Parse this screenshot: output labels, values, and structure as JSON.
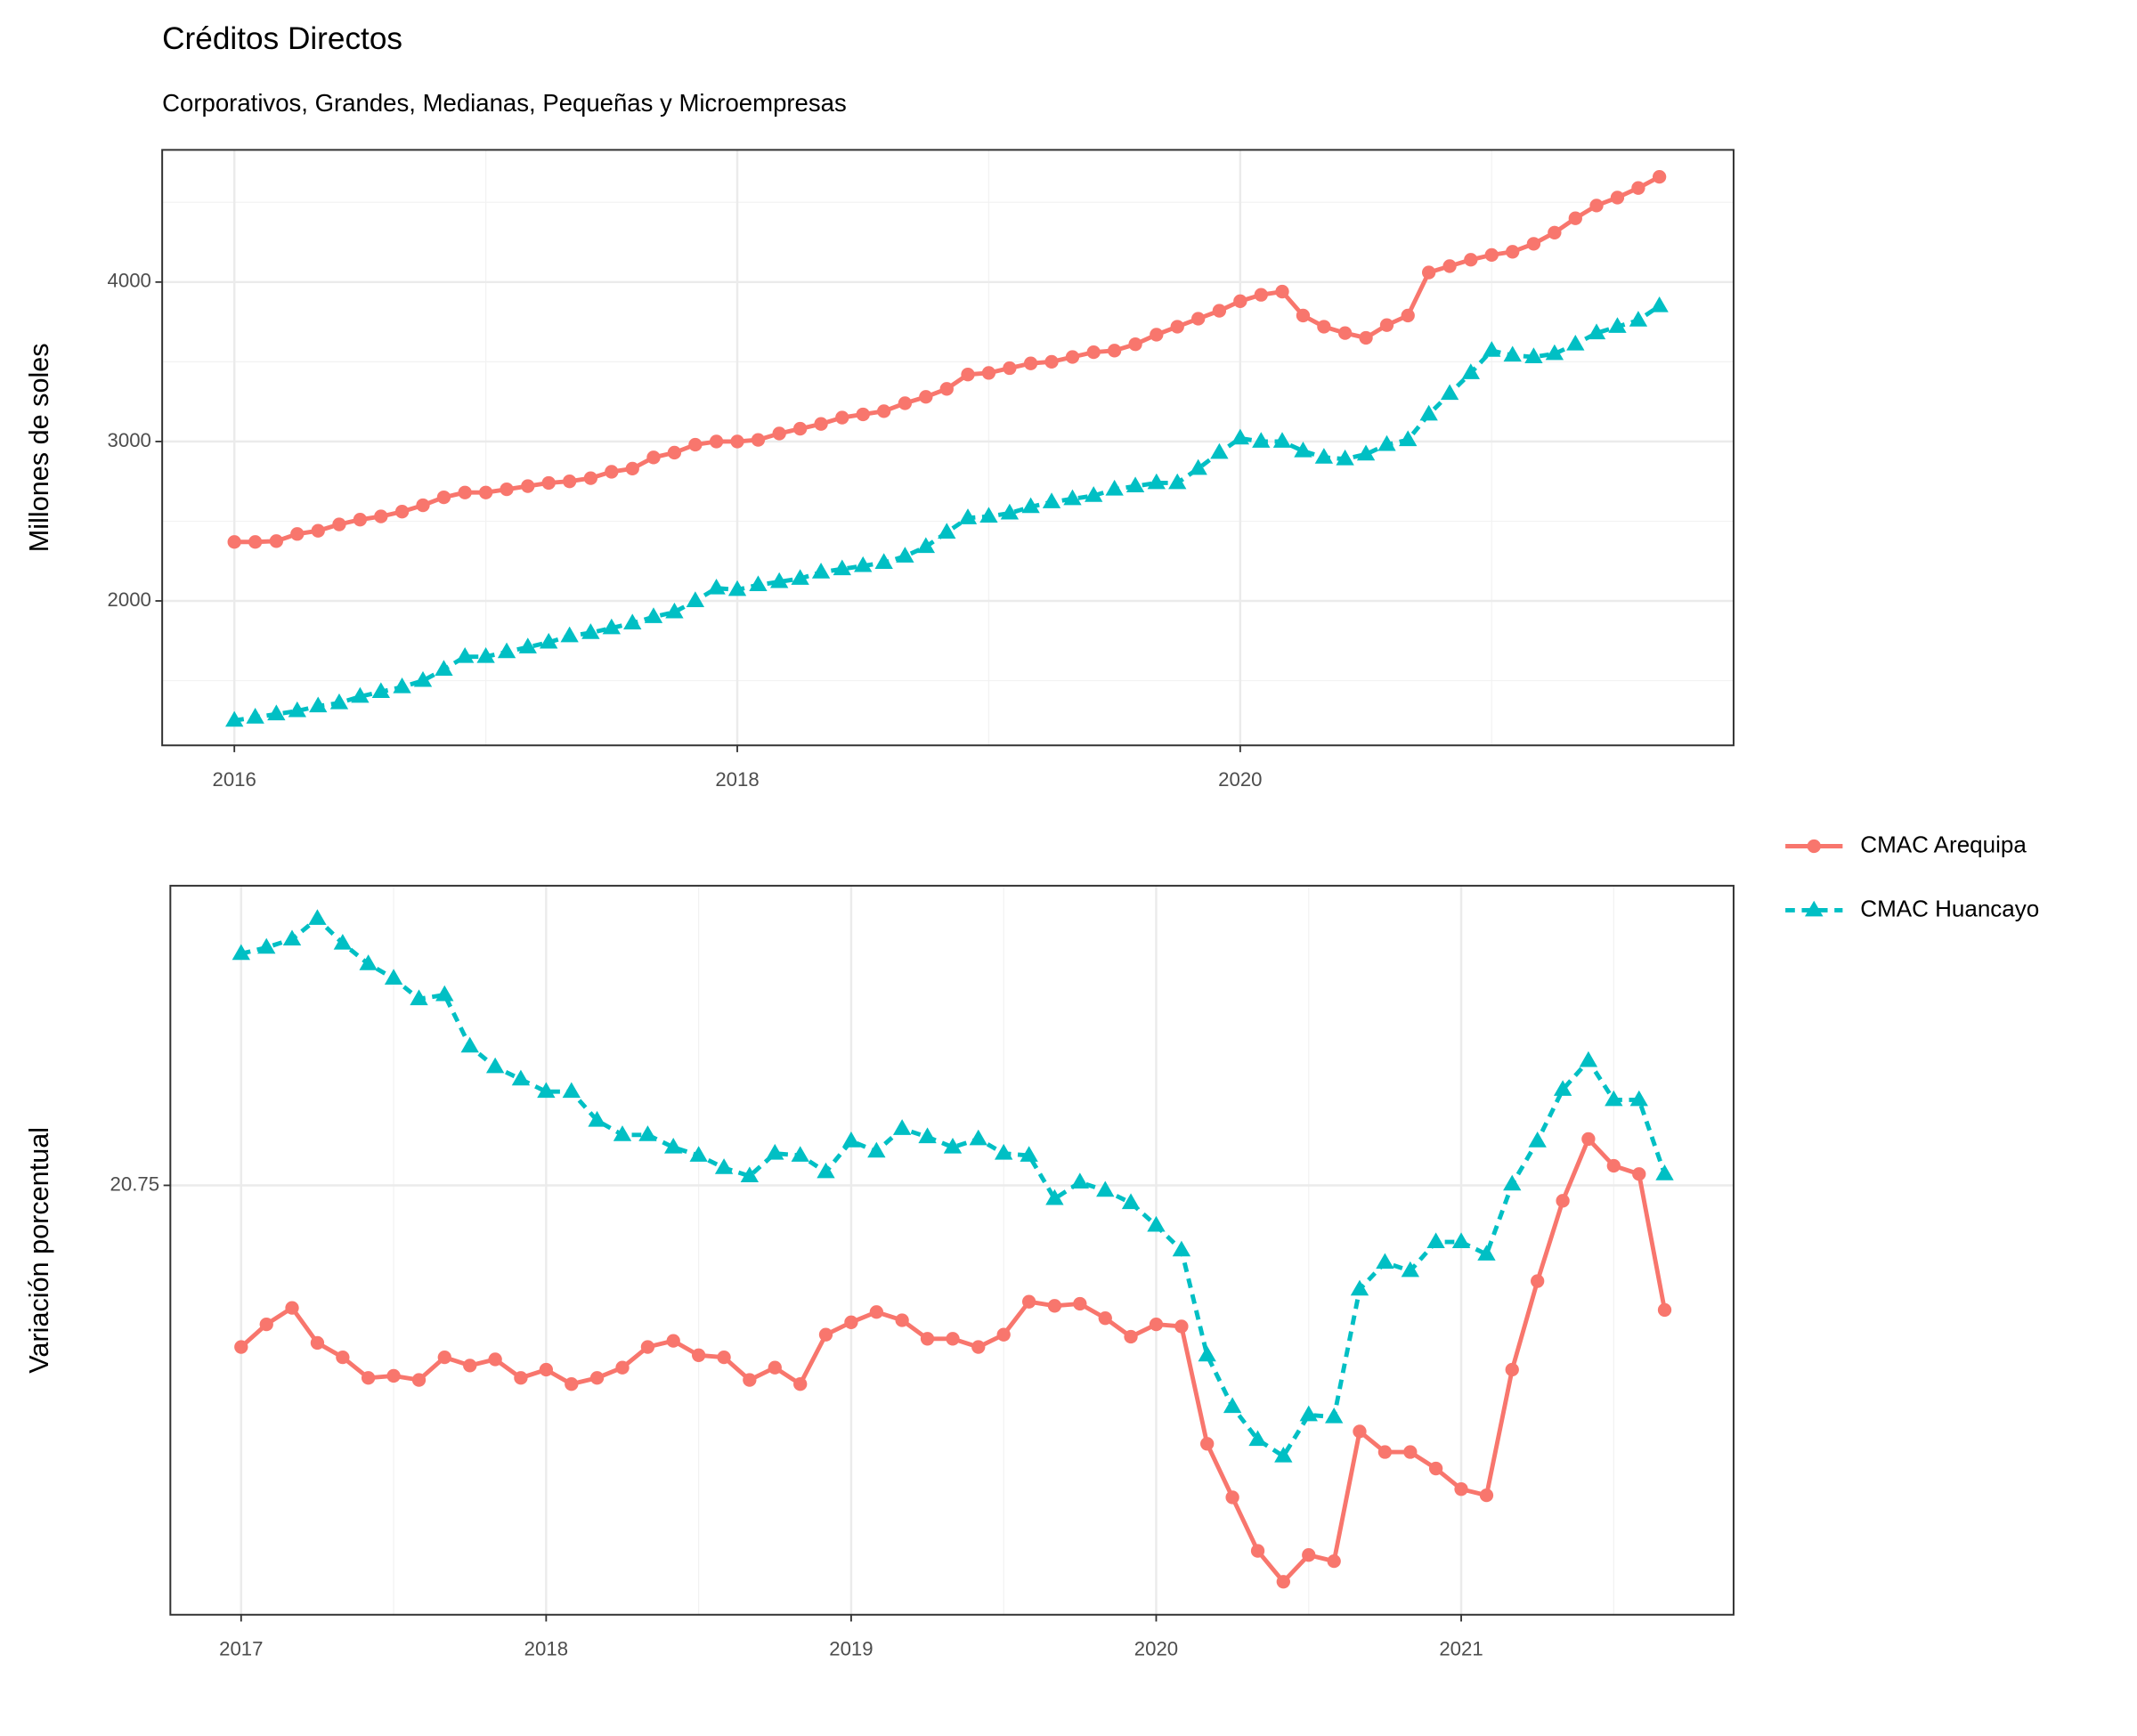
{
  "chart_data": [
    {
      "type": "line",
      "title": "Créditos Directos",
      "subtitle": "Corporativos, Grandes, Medianas, Pequeñas y Microempresas",
      "y_label": "Millones de soles",
      "x": [
        2016.0,
        2016.083,
        2016.167,
        2016.25,
        2016.333,
        2016.417,
        2016.5,
        2016.583,
        2016.667,
        2016.75,
        2016.833,
        2016.917,
        2017.0,
        2017.083,
        2017.167,
        2017.25,
        2017.333,
        2017.417,
        2017.5,
        2017.583,
        2017.667,
        2017.75,
        2017.833,
        2017.917,
        2018.0,
        2018.083,
        2018.167,
        2018.25,
        2018.333,
        2018.417,
        2018.5,
        2018.583,
        2018.667,
        2018.75,
        2018.833,
        2018.917,
        2019.0,
        2019.083,
        2019.167,
        2019.25,
        2019.333,
        2019.417,
        2019.5,
        2019.583,
        2019.667,
        2019.75,
        2019.833,
        2019.917,
        2020.0,
        2020.083,
        2020.167,
        2020.25,
        2020.333,
        2020.417,
        2020.5,
        2020.583,
        2020.667,
        2020.75,
        2020.833,
        2020.917,
        2021.0,
        2021.083,
        2021.167,
        2021.25,
        2021.333,
        2021.417,
        2021.5,
        2021.583,
        2021.667
      ],
      "series": [
        {
          "name": "CMAC Arequipa",
          "color": "#F8766D",
          "marker": "circle",
          "linestyle": "solid",
          "values": [
            2370,
            2370,
            2375,
            2420,
            2440,
            2480,
            2510,
            2530,
            2560,
            2600,
            2650,
            2680,
            2680,
            2700,
            2720,
            2740,
            2750,
            2770,
            2810,
            2830,
            2900,
            2930,
            2980,
            3000,
            3000,
            3010,
            3050,
            3080,
            3110,
            3150,
            3170,
            3190,
            3240,
            3280,
            3330,
            3420,
            3430,
            3460,
            3490,
            3500,
            3530,
            3560,
            3570,
            3610,
            3670,
            3720,
            3770,
            3820,
            3880,
            3920,
            3940,
            3790,
            3720,
            3680,
            3650,
            3730,
            3790,
            4060,
            4100,
            4140,
            4170,
            4190,
            4240,
            4310,
            4400,
            4480,
            4530,
            4590,
            4660
          ]
        },
        {
          "name": "CMAC Huancayo",
          "color": "#00BFC4",
          "marker": "triangle",
          "linestyle": "dashed",
          "values": [
            1250,
            1270,
            1290,
            1310,
            1340,
            1360,
            1400,
            1430,
            1460,
            1500,
            1570,
            1650,
            1650,
            1680,
            1710,
            1740,
            1780,
            1800,
            1830,
            1860,
            1900,
            1930,
            2000,
            2080,
            2070,
            2100,
            2120,
            2140,
            2180,
            2200,
            2220,
            2240,
            2280,
            2340,
            2430,
            2520,
            2530,
            2550,
            2590,
            2620,
            2640,
            2660,
            2700,
            2720,
            2740,
            2740,
            2830,
            2930,
            3020,
            3000,
            3000,
            2940,
            2900,
            2890,
            2920,
            2980,
            3010,
            3170,
            3300,
            3430,
            3570,
            3540,
            3530,
            3550,
            3610,
            3680,
            3720,
            3760,
            3850
          ]
        }
      ],
      "xlim": [
        2015.713,
        2021.962
      ],
      "xticks": [
        2016,
        2018,
        2020
      ],
      "ylim": [
        1094,
        4829
      ],
      "yticks": [
        2000,
        3000,
        4000
      ],
      "grid": true
    },
    {
      "type": "line",
      "y_label": "Variación porcentual",
      "x": [
        2017.0,
        2017.083,
        2017.167,
        2017.25,
        2017.333,
        2017.417,
        2017.5,
        2017.583,
        2017.667,
        2017.75,
        2017.833,
        2017.917,
        2018.0,
        2018.083,
        2018.167,
        2018.25,
        2018.333,
        2018.417,
        2018.5,
        2018.583,
        2018.667,
        2018.75,
        2018.833,
        2018.917,
        2019.0,
        2019.083,
        2019.167,
        2019.25,
        2019.333,
        2019.417,
        2019.5,
        2019.583,
        2019.667,
        2019.75,
        2019.833,
        2019.917,
        2020.0,
        2020.083,
        2020.167,
        2020.25,
        2020.333,
        2020.417,
        2020.5,
        2020.583,
        2020.667,
        2020.75,
        2020.833,
        2020.917,
        2021.0,
        2021.083,
        2021.167,
        2021.25,
        2021.333,
        2021.417,
        2021.5,
        2021.583,
        2021.667
      ],
      "series": [
        {
          "name": "CMAC Arequipa",
          "color": "#F8766D",
          "marker": "circle",
          "linestyle": "solid",
          "values": [
            12.9,
            14.0,
            14.8,
            13.1,
            12.4,
            11.4,
            11.5,
            11.3,
            12.4,
            12.0,
            12.3,
            11.4,
            11.8,
            11.1,
            11.4,
            11.9,
            12.9,
            13.2,
            12.5,
            12.4,
            11.3,
            11.9,
            11.1,
            13.5,
            14.1,
            14.6,
            14.2,
            13.3,
            13.3,
            12.9,
            13.5,
            15.1,
            14.9,
            15.0,
            14.3,
            13.4,
            14.0,
            13.9,
            8.2,
            5.6,
            3.0,
            1.5,
            2.8,
            2.5,
            8.8,
            7.8,
            7.8,
            7.0,
            6.0,
            5.7,
            11.8,
            16.1,
            20.0,
            23.0,
            21.7,
            21.3,
            14.7
          ]
        },
        {
          "name": "CMAC Huancayo",
          "color": "#00BFC4",
          "marker": "triangle",
          "linestyle": "dashed",
          "values": [
            32.0,
            32.3,
            32.7,
            33.7,
            32.5,
            31.5,
            30.8,
            29.8,
            30.0,
            27.5,
            26.5,
            25.9,
            25.3,
            25.3,
            23.9,
            23.2,
            23.2,
            22.6,
            22.2,
            21.6,
            21.2,
            22.3,
            22.2,
            21.4,
            22.9,
            22.4,
            23.5,
            23.1,
            22.6,
            23.0,
            22.3,
            22.2,
            20.1,
            20.9,
            20.5,
            19.9,
            18.8,
            17.6,
            12.5,
            10.0,
            8.4,
            7.6,
            9.6,
            9.5,
            15.7,
            17.0,
            16.6,
            18.0,
            18.0,
            17.4,
            20.8,
            22.9,
            25.4,
            26.8,
            24.9,
            24.9,
            21.3
          ]
        }
      ],
      "xlim": [
        2016.768,
        2021.893
      ],
      "xticks": [
        2017,
        2018,
        2019,
        2020,
        2021
      ],
      "ylim": [
        -0.1,
        35.3
      ],
      "yticks": [
        20.75
      ],
      "grid": true,
      "legend": "right"
    }
  ]
}
